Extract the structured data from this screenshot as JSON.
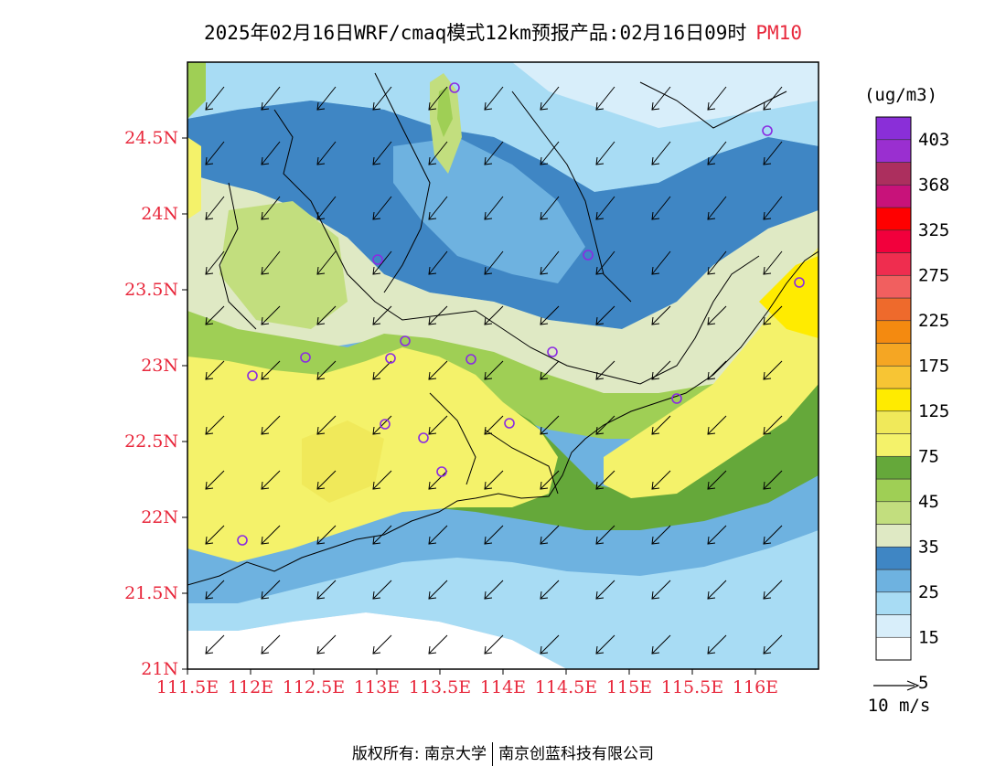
{
  "title": {
    "main": "2025年02月16日WRF/cmaq模式12km预报产品:02月16日09时",
    "pollutant": "PM10"
  },
  "map": {
    "lat_ticks": [
      "21N",
      "21.5N",
      "22N",
      "22.5N",
      "23N",
      "23.5N",
      "24N",
      "24.5N"
    ],
    "lon_ticks": [
      "111.5E",
      "112E",
      "112.5E",
      "113E",
      "113.5E",
      "114E",
      "114.5E",
      "115E",
      "115.5E",
      "116E"
    ],
    "lat_range": [
      21.0,
      25.0
    ],
    "lon_range": [
      111.5,
      116.5
    ]
  },
  "colorbar": {
    "unit": "(ug/m3)",
    "labels": [
      "403",
      "368",
      "325",
      "275",
      "225",
      "175",
      "125",
      "75",
      "45",
      "35",
      "25",
      "15",
      "5"
    ],
    "colors": [
      "#ffffff",
      "#d8eefa",
      "#a8dcf4",
      "#6eb2e0",
      "#3f86c4",
      "#dfe9c4",
      "#c2de7e",
      "#9fcf55",
      "#65a83a",
      "#f4f26a",
      "#f0e95a",
      "#ffeb00",
      "#f7c534",
      "#f5a623",
      "#f48a10",
      "#ee6a2c",
      "#f15f5f",
      "#ef2d4f",
      "#f2003c",
      "#ff0000",
      "#c8127a",
      "#ac2f5e",
      "#9a2fd0",
      "#8a2fd8"
    ]
  },
  "wind": {
    "reference_label": "10 m/s"
  },
  "stations_label": "",
  "footer": {
    "copyright": "版权所有: 南京大学",
    "company": "南京创蓝科技有限公司"
  },
  "colors": {
    "tick_red": "#e8283c",
    "station_purple": "#8a2be2"
  }
}
